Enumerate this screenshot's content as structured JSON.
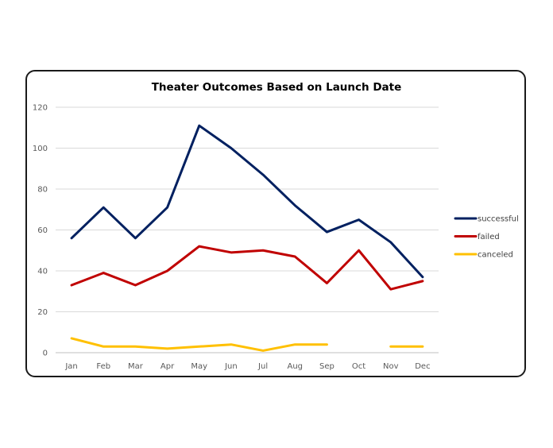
{
  "chart_data": {
    "type": "line",
    "title": "Theater Outcomes Based on Launch Date",
    "xlabel": "",
    "ylabel": "",
    "categories": [
      "Jan",
      "Feb",
      "Mar",
      "Apr",
      "May",
      "Jun",
      "Jul",
      "Aug",
      "Sep",
      "Oct",
      "Nov",
      "Dec"
    ],
    "ylim": [
      0,
      120
    ],
    "yticks": [
      "0",
      "20",
      "40",
      "60",
      "80",
      "100",
      "120"
    ],
    "grid": true,
    "legend_position": "right",
    "series": [
      {
        "name": "successful",
        "color": "#002060",
        "values": [
          56,
          71,
          56,
          71,
          111,
          100,
          87,
          72,
          59,
          65,
          54,
          37
        ]
      },
      {
        "name": "failed",
        "color": "#C00000",
        "values": [
          33,
          39,
          33,
          40,
          52,
          49,
          50,
          47,
          34,
          50,
          31,
          35
        ]
      },
      {
        "name": "canceled",
        "color": "#FFC000",
        "values": [
          7,
          3,
          3,
          2,
          3,
          4,
          1,
          4,
          4,
          null,
          3,
          3
        ]
      }
    ]
  }
}
